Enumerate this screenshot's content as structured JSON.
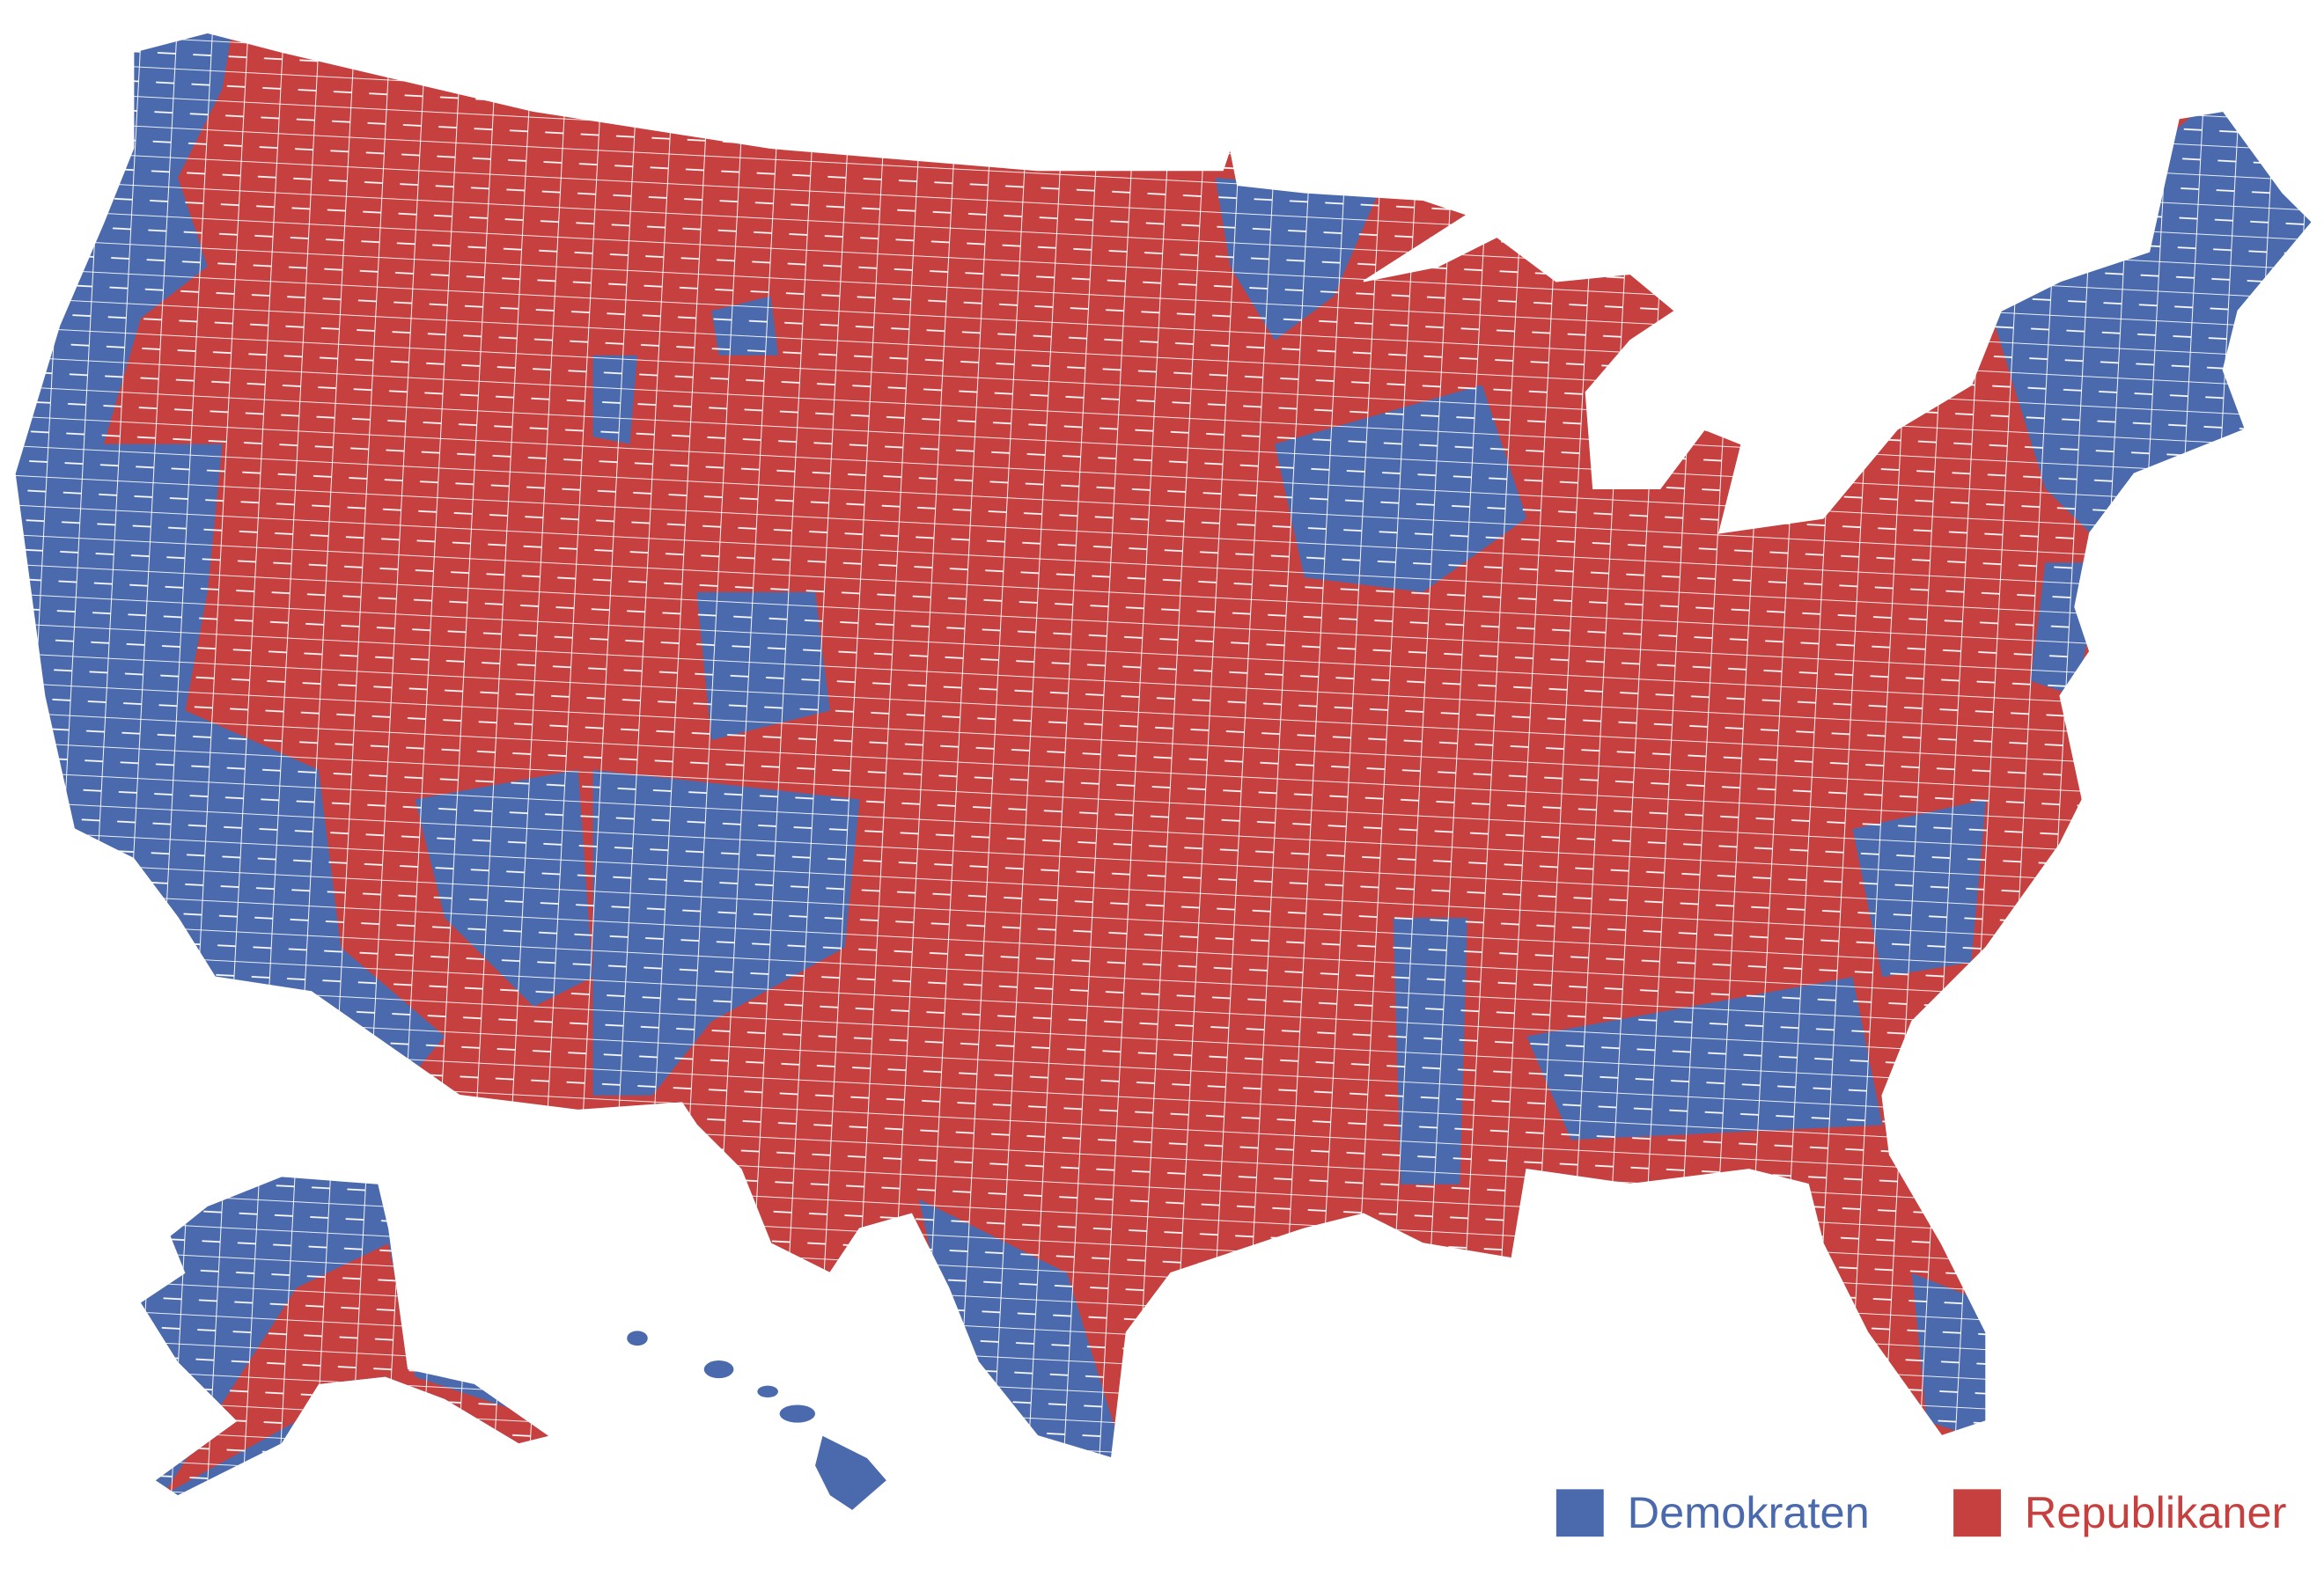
{
  "legend": {
    "items": [
      {
        "label": "Demokraten",
        "color": "#4a6aad"
      },
      {
        "label": "Republikaner",
        "color": "#c5403f"
      }
    ]
  }
}
